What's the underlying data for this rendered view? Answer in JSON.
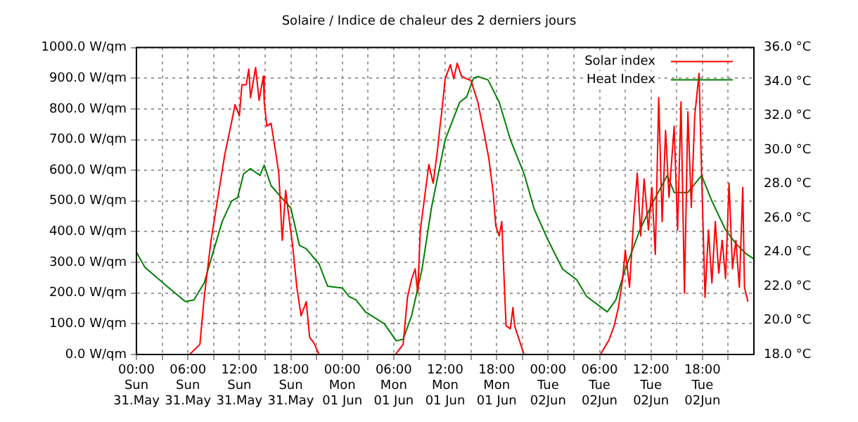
{
  "chart_data": {
    "type": "line",
    "title": "Solaire / Indice de chaleur des 2 derniers jours",
    "xlim": [
      "--05-31T00:00",
      "--06-03T00:00"
    ],
    "xticks": [
      {
        "value": "--05-31T00:00",
        "label": "00:00\nSun\n31.May"
      },
      {
        "value": "--05-31T03:00",
        "label": null
      },
      {
        "value": "--05-31T06:00",
        "label": "06:00\nSun\n31.May"
      },
      {
        "value": "--05-31T09:00",
        "label": null
      },
      {
        "value": "--05-31T12:00",
        "label": "12:00\nSun\n31.May"
      },
      {
        "value": "--05-31T15:00",
        "label": null
      },
      {
        "value": "--05-31T18:00",
        "label": "18:00\nSun\n31.May"
      },
      {
        "value": "--05-31T21:00",
        "label": null
      },
      {
        "value": "--06-01T00:00",
        "label": "00:00\nMon\n01 Jun"
      },
      {
        "value": "--06-01T03:00",
        "label": null
      },
      {
        "value": "--06-01T06:00",
        "label": "06:00\nMon\n01 Jun"
      },
      {
        "value": "--06-01T09:00",
        "label": null
      },
      {
        "value": "--06-01T12:00",
        "label": "12:00\nMon\n01 Jun"
      },
      {
        "value": "--06-01T15:00",
        "label": null
      },
      {
        "value": "--06-01T18:00",
        "label": "18:00\nMon\n01 Jun"
      },
      {
        "value": "--06-01T21:00",
        "label": null
      },
      {
        "value": "--06-02T00:00",
        "label": "00:00\nTue\n02Jun"
      },
      {
        "value": "--06-02T03:00",
        "label": null
      },
      {
        "value": "--06-02T06:00",
        "label": "06:00\nTue\n02Jun"
      },
      {
        "value": "--06-02T09:00",
        "label": null
      },
      {
        "value": "--06-02T12:00",
        "label": "12:00\nTue\n02Jun"
      },
      {
        "value": "--06-02T15:00",
        "label": null
      },
      {
        "value": "--06-02T18:00",
        "label": "18:00\nTue\n02Jun"
      },
      {
        "value": "--06-02T21:00",
        "label": null
      }
    ],
    "ylim": [
      0,
      1000
    ],
    "yticks": [
      {
        "value": 0,
        "label": "0.0 W/qm"
      },
      {
        "value": 100,
        "label": "100.0 W/qm"
      },
      {
        "value": 200,
        "label": "200.0 W/qm"
      },
      {
        "value": 300,
        "label": "300.0 W/qm"
      },
      {
        "value": 400,
        "label": "400.0 W/qm"
      },
      {
        "value": 500,
        "label": "500.0 W/qm"
      },
      {
        "value": 600,
        "label": "600.0 W/qm"
      },
      {
        "value": 700,
        "label": "700.0 W/qm"
      },
      {
        "value": 800,
        "label": "800.0 W/qm"
      },
      {
        "value": 900,
        "label": "900.0 W/qm"
      },
      {
        "value": 1000,
        "label": "1000.0 W/qm"
      }
    ],
    "y2lim": [
      18,
      36
    ],
    "y2ticks": [
      {
        "value": 18,
        "label": "18.0 °C"
      },
      {
        "value": 20,
        "label": "20.0 °C"
      },
      {
        "value": 22,
        "label": "22.0 °C"
      },
      {
        "value": 24,
        "label": "24.0 °C"
      },
      {
        "value": 26,
        "label": "26.0 °C"
      },
      {
        "value": 28,
        "label": "28.0 °C"
      },
      {
        "value": 30,
        "label": "30.0 °C"
      },
      {
        "value": 32,
        "label": "32.0 °C"
      },
      {
        "value": 34,
        "label": "34.0 °C"
      },
      {
        "value": 36,
        "label": "36.0 °C"
      }
    ],
    "grid": true,
    "legend": "top right",
    "marker": "none",
    "line_style": "solid",
    "series": [
      {
        "name": "Solar index",
        "color": "#ff0000",
        "x": [
          "--05-31T06:12",
          "--05-31T07:24",
          "--05-31T07:54",
          "--05-31T08:42",
          "--05-31T09:30",
          "--05-31T10:18",
          "--05-31T11:06",
          "--05-31T11:30",
          "--05-31T12:00",
          "--05-31T12:18",
          "--05-31T12:48",
          "--05-31T13:06",
          "--05-31T13:18",
          "--05-31T13:54",
          "--05-31T14:18",
          "--05-31T14:48",
          "--05-31T14:54",
          "--05-31T15:12",
          "--05-31T15:42",
          "--05-31T16:12",
          "--05-31T16:36",
          "--05-31T17:00",
          "--05-31T17:24",
          "--05-31T17:42",
          "--05-31T18:12",
          "--05-31T18:42",
          "--05-31T19:12",
          "--05-31T19:48",
          "--05-31T20:12",
          "--05-31T20:42",
          "--05-31T21:18",
          "--06-01T06:12",
          "--06-01T07:06",
          "--06-01T07:36",
          "--06-01T08:06",
          "--06-01T08:30",
          "--06-01T08:48",
          "--06-01T09:06",
          "--06-01T09:36",
          "--06-01T10:06",
          "--06-01T10:36",
          "--06-01T11:06",
          "--06-01T11:24",
          "--06-01T11:36",
          "--06-01T12:00",
          "--06-01T12:36",
          "--06-01T13:00",
          "--06-01T13:24",
          "--06-01T13:54",
          "--06-01T14:30",
          "--06-01T15:00",
          "--06-01T15:48",
          "--06-01T16:36",
          "--06-01T17:06",
          "--06-01T17:36",
          "--06-01T17:54",
          "--06-01T18:18",
          "--06-01T18:36",
          "--06-01T18:48",
          "--06-01T19:06",
          "--06-01T19:36",
          "--06-01T19:54",
          "--06-01T20:06",
          "--06-01T20:48",
          "--06-01T21:12",
          "--06-02T06:06",
          "--06-02T07:06",
          "--06-02T07:42",
          "--06-02T08:12",
          "--06-02T08:42",
          "--06-02T09:00",
          "--06-02T09:30",
          "--06-02T10:00",
          "--06-02T10:24",
          "--06-02T10:48",
          "--06-02T11:12",
          "--06-02T11:42",
          "--06-02T12:06",
          "--06-02T12:30",
          "--06-02T12:54",
          "--06-02T13:18",
          "--06-02T13:42",
          "--06-02T14:06",
          "--06-02T14:42",
          "--06-02T15:06",
          "--06-02T15:30",
          "--06-02T15:54",
          "--06-02T16:18",
          "--06-02T16:42",
          "--06-02T17:06",
          "--06-02T17:36",
          "--06-02T17:54",
          "--06-02T18:18",
          "--06-02T18:42",
          "--06-02T19:06",
          "--06-02T19:30",
          "--06-02T19:54",
          "--06-02T20:18",
          "--06-02T20:42",
          "--06-02T21:06",
          "--06-02T21:30",
          "--06-02T21:54",
          "--06-02T22:18",
          "--06-02T22:42",
          "--06-02T22:54",
          "--06-02T23:18"
        ],
        "values": [
          0,
          33,
          186,
          372,
          512,
          651,
          758,
          814,
          777,
          879,
          879,
          930,
          837,
          935,
          828,
          907,
          823,
          744,
          753,
          665,
          591,
          372,
          535,
          465,
          358,
          219,
          126,
          172,
          56,
          37,
          0,
          0,
          33,
          186,
          247,
          279,
          200,
          405,
          512,
          619,
          558,
          665,
          744,
          791,
          898,
          944,
          898,
          949,
          907,
          898,
          893,
          823,
          712,
          637,
          526,
          419,
          386,
          433,
          293,
          93,
          84,
          153,
          93,
          33,
          0,
          0,
          47,
          93,
          153,
          247,
          340,
          219,
          451,
          591,
          386,
          572,
          405,
          544,
          326,
          837,
          433,
          730,
          512,
          744,
          405,
          823,
          200,
          791,
          479,
          777,
          916,
          591,
          186,
          405,
          233,
          433,
          265,
          372,
          247,
          558,
          279,
          372,
          219,
          544,
          219,
          172
        ]
      },
      {
        "name": "Heat Index",
        "color": "#008000",
        "axis": "y2",
        "x": [
          "--05-31T00:00",
          "--05-31T01:00",
          "--05-31T03:48",
          "--05-31T05:42",
          "--05-31T06:42",
          "--05-31T07:54",
          "--05-31T09:00",
          "--05-31T10:00",
          "--05-31T11:06",
          "--05-31T11:48",
          "--05-31T12:30",
          "--05-31T13:18",
          "--05-31T14:24",
          "--05-31T14:54",
          "--05-31T15:42",
          "--05-31T16:54",
          "--05-31T18:00",
          "--05-31T19:00",
          "--05-31T19:48",
          "--05-31T21:18",
          "--05-31T22:18",
          "--06-01T00:00",
          "--06-01T00:48",
          "--06-01T01:36",
          "--06-01T02:42",
          "--06-01T04:54",
          "--06-01T06:18",
          "--06-01T07:06",
          "--06-01T08:06",
          "--06-01T09:18",
          "--06-01T10:24",
          "--06-01T12:00",
          "--06-01T13:42",
          "--06-01T14:30",
          "--06-01T15:18",
          "--06-01T15:48",
          "--06-01T17:00",
          "--06-01T18:18",
          "--06-01T19:36",
          "--06-01T21:12",
          "--06-01T22:24",
          "--06-02T00:00",
          "--06-02T01:42",
          "--06-02T03:18",
          "--06-02T04:30",
          "--06-02T06:06",
          "--06-02T06:54",
          "--06-02T07:54",
          "--06-02T09:00",
          "--06-02T10:42",
          "--06-02T12:18",
          "--06-02T13:54",
          "--06-02T14:42",
          "--06-02T16:18",
          "--06-02T17:54",
          "--06-02T19:06",
          "--06-02T20:42",
          "--06-02T21:54",
          "--06-02T23:06",
          "--06-03T00:00"
        ],
        "values": [
          24.0,
          23.1,
          21.9,
          21.1,
          21.2,
          22.2,
          24.1,
          25.8,
          27.0,
          27.2,
          28.6,
          28.9,
          28.5,
          29.1,
          27.9,
          27.2,
          26.6,
          24.4,
          24.2,
          23.3,
          22.0,
          21.9,
          21.4,
          21.2,
          20.5,
          19.8,
          18.8,
          18.9,
          20.3,
          23.0,
          26.6,
          30.6,
          32.8,
          33.1,
          34.2,
          34.3,
          34.1,
          32.8,
          30.6,
          28.6,
          26.5,
          24.7,
          23.0,
          22.4,
          21.4,
          20.8,
          20.5,
          21.2,
          23.0,
          25.3,
          27.0,
          28.5,
          27.5,
          27.5,
          28.5,
          27.0,
          25.3,
          24.5,
          23.9,
          23.6
        ]
      }
    ]
  }
}
